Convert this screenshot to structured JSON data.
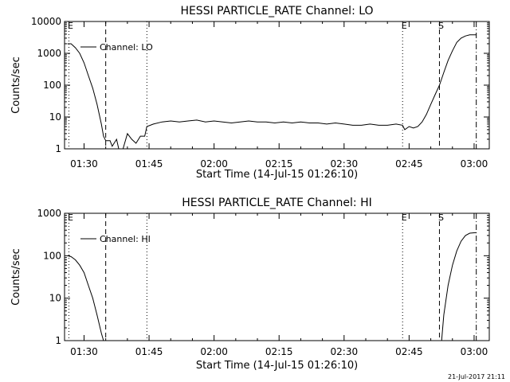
{
  "footer_stamp": "21-Jul-2017 21:11",
  "chart_data": [
    {
      "type": "line",
      "title": "HESSI PARTICLE_RATE Channel: LO",
      "xlabel": "Start Time (14-Jul-15 01:26:10)",
      "ylabel": "Counts/sec",
      "yscale": "log",
      "ylim": [
        1,
        10000
      ],
      "xlim_minutes": [
        85.5,
        183.5
      ],
      "x_ticks": [
        "01:30",
        "01:45",
        "02:00",
        "02:15",
        "02:30",
        "02:45",
        "03:00"
      ],
      "y_ticks": [
        "1",
        "10",
        "100",
        "1000",
        "10000"
      ],
      "legend": {
        "placement": "top-left",
        "entries": [
          "Channel: LO"
        ]
      },
      "markers": [
        {
          "label": "E",
          "time": "01:26:30",
          "style": "dotted"
        },
        {
          "label": "",
          "time": "01:35:00",
          "style": "dashed"
        },
        {
          "label": "",
          "time": "01:44:30",
          "style": "dotted"
        },
        {
          "label": "E",
          "time": "02:43:30",
          "style": "dotted"
        },
        {
          "label": "S",
          "time": "02:52:00",
          "style": "dashed"
        },
        {
          "label": "",
          "time": "03:00:30",
          "style": "dashdot"
        }
      ],
      "series": [
        {
          "name": "Channel: LO",
          "points": [
            [
              "01:26:10",
              2000
            ],
            [
              "01:27:00",
              2000
            ],
            [
              "01:28:00",
              1500
            ],
            [
              "01:29:00",
              1000
            ],
            [
              "01:30:00",
              500
            ],
            [
              "01:31:00",
              200
            ],
            [
              "01:32:00",
              80
            ],
            [
              "01:33:00",
              25
            ],
            [
              "01:34:00",
              6
            ],
            [
              "01:34:30",
              2.5
            ],
            [
              "01:35:00",
              1.8
            ],
            [
              "01:36:00",
              1.8
            ],
            [
              "01:36:30",
              1.2
            ],
            [
              "01:37:30",
              2
            ],
            [
              "01:38:00",
              1
            ],
            [
              "01:39:00",
              1
            ],
            [
              "01:40:00",
              3
            ],
            [
              "01:41:00",
              2
            ],
            [
              "01:42:00",
              1.5
            ],
            [
              "01:43:00",
              2.5
            ],
            [
              "01:44:00",
              2.5
            ],
            [
              "01:44:30",
              5
            ],
            [
              "01:46:00",
              6
            ],
            [
              "01:48:00",
              7
            ],
            [
              "01:50:00",
              7.5
            ],
            [
              "01:52:00",
              7
            ],
            [
              "01:54:00",
              7.5
            ],
            [
              "01:56:00",
              8
            ],
            [
              "01:58:00",
              7
            ],
            [
              "02:00:00",
              7.5
            ],
            [
              "02:02:00",
              7
            ],
            [
              "02:04:00",
              6.5
            ],
            [
              "02:06:00",
              7
            ],
            [
              "02:08:00",
              7.5
            ],
            [
              "02:10:00",
              7
            ],
            [
              "02:12:00",
              7
            ],
            [
              "02:14:00",
              6.5
            ],
            [
              "02:16:00",
              7
            ],
            [
              "02:18:00",
              6.5
            ],
            [
              "02:20:00",
              7
            ],
            [
              "02:22:00",
              6.5
            ],
            [
              "02:24:00",
              6.5
            ],
            [
              "02:26:00",
              6
            ],
            [
              "02:28:00",
              6.5
            ],
            [
              "02:30:00",
              6
            ],
            [
              "02:32:00",
              5.5
            ],
            [
              "02:34:00",
              5.5
            ],
            [
              "02:36:00",
              6
            ],
            [
              "02:38:00",
              5.5
            ],
            [
              "02:40:00",
              5.5
            ],
            [
              "02:42:00",
              6
            ],
            [
              "02:43:30",
              5.5
            ],
            [
              "02:44:00",
              4
            ],
            [
              "02:45:00",
              5
            ],
            [
              "02:46:00",
              4.5
            ],
            [
              "02:47:00",
              5
            ],
            [
              "02:48:00",
              7
            ],
            [
              "02:49:00",
              12
            ],
            [
              "02:50:00",
              25
            ],
            [
              "02:51:00",
              50
            ],
            [
              "02:52:00",
              100
            ],
            [
              "02:53:00",
              250
            ],
            [
              "02:54:00",
              600
            ],
            [
              "02:55:00",
              1200
            ],
            [
              "02:56:00",
              2200
            ],
            [
              "02:57:00",
              3000
            ],
            [
              "02:58:00",
              3500
            ],
            [
              "02:59:00",
              3800
            ],
            [
              "03:00:30",
              3800
            ]
          ]
        }
      ]
    },
    {
      "type": "line",
      "title": "HESSI PARTICLE_RATE Channel: HI",
      "xlabel": "Start Time (14-Jul-15 01:26:10)",
      "ylabel": "Counts/sec",
      "yscale": "log",
      "ylim": [
        1,
        1000
      ],
      "xlim_minutes": [
        85.5,
        183.5
      ],
      "x_ticks": [
        "01:30",
        "01:45",
        "02:00",
        "02:15",
        "02:30",
        "02:45",
        "03:00"
      ],
      "y_ticks": [
        "1",
        "10",
        "100",
        "1000"
      ],
      "legend": {
        "placement": "top-left",
        "entries": [
          "Channel: HI"
        ]
      },
      "markers": [
        {
          "label": "E",
          "time": "01:26:30",
          "style": "dotted"
        },
        {
          "label": "",
          "time": "01:35:00",
          "style": "dashed"
        },
        {
          "label": "",
          "time": "01:44:30",
          "style": "dotted"
        },
        {
          "label": "E",
          "time": "02:43:30",
          "style": "dotted"
        },
        {
          "label": "S",
          "time": "02:52:00",
          "style": "dashed"
        },
        {
          "label": "",
          "time": "03:00:30",
          "style": "dashdot"
        }
      ],
      "series": [
        {
          "name": "Channel: HI",
          "points": [
            [
              "01:26:10",
              100
            ],
            [
              "01:27:00",
              95
            ],
            [
              "01:28:00",
              80
            ],
            [
              "01:29:00",
              60
            ],
            [
              "01:30:00",
              40
            ],
            [
              "01:31:00",
              20
            ],
            [
              "01:32:00",
              10
            ],
            [
              "01:33:00",
              4
            ],
            [
              "01:34:00",
              1.5
            ],
            [
              "01:34:30",
              1
            ],
            null,
            [
              "02:52:30",
              1
            ],
            [
              "02:53:00",
              4
            ],
            [
              "02:54:00",
              20
            ],
            [
              "02:55:00",
              60
            ],
            [
              "02:56:00",
              130
            ],
            [
              "02:57:00",
              220
            ],
            [
              "02:58:00",
              300
            ],
            [
              "02:59:00",
              340
            ],
            [
              "03:00:30",
              350
            ]
          ]
        }
      ]
    }
  ]
}
